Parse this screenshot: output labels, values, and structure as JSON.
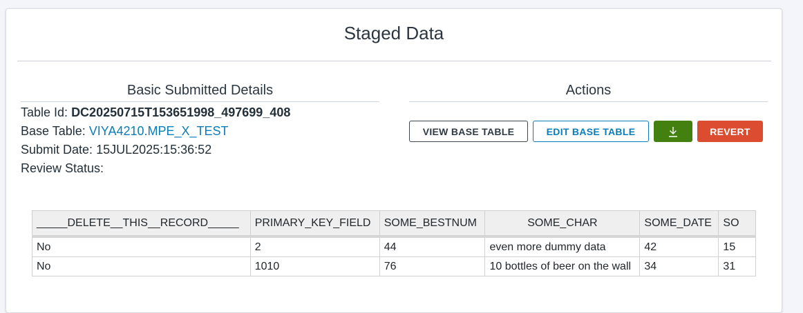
{
  "title": "Staged Data",
  "details": {
    "heading": "Basic Submitted Details",
    "table_id_label": "Table Id:",
    "table_id": "DC20250715T153651998_497699_408",
    "base_table_label": "Base Table:",
    "base_table": "VIYA4210.MPE_X_TEST",
    "submit_date_label": "Submit Date:",
    "submit_date": "15JUL2025:15:36:52",
    "review_status_label": "Review Status:"
  },
  "actions": {
    "heading": "Actions",
    "view_base_table": "VIEW BASE TABLE",
    "edit_base_table": "EDIT BASE TABLE",
    "download_icon": "download-icon",
    "revert": "REVERT",
    "colors": {
      "download": "#43800f",
      "revert": "#db4c30",
      "link": "#0a7cb8"
    }
  },
  "table": {
    "headers": [
      "_____DELETE__THIS__RECORD_____",
      "PRIMARY_KEY_FIELD",
      "SOME_BESTNUM",
      "SOME_CHAR",
      "SOME_DATE",
      "SO"
    ],
    "rows": [
      [
        "No",
        "2",
        "44",
        "even more dummy data",
        "42",
        "15"
      ],
      [
        "No",
        "1010",
        "76",
        "10 bottles of beer on the wall",
        "34",
        "31"
      ]
    ]
  }
}
